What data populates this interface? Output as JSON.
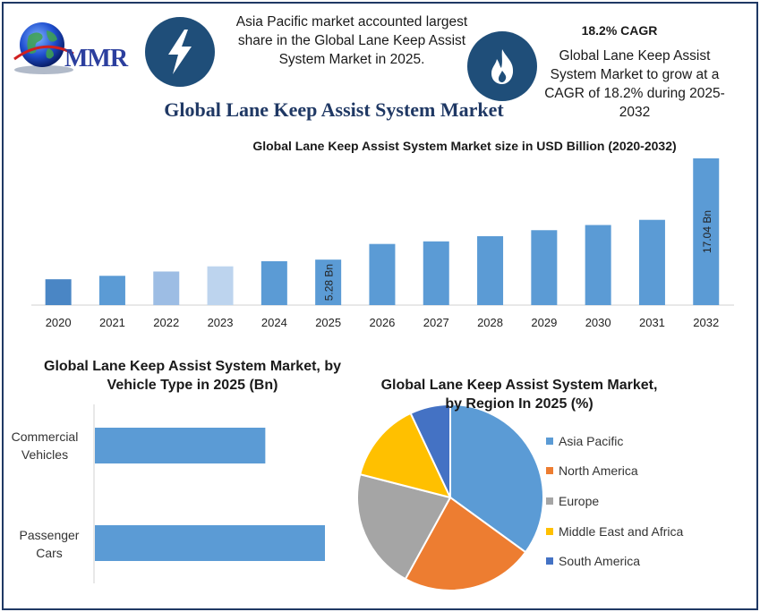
{
  "logo": {
    "text": "MMR"
  },
  "info_left": {
    "text": "Asia Pacific market accounted largest share in the Global Lane Keep Assist System Market in 2025."
  },
  "cagr": {
    "title": "18.2% CAGR",
    "text": "Global Lane Keep Assist System Market to grow at a CAGR of 18.2% during 2025-2032"
  },
  "main_title": "Global Lane Keep Assist System Market",
  "icons": {
    "left": "lightning-bolt-icon",
    "right": "flame-icon",
    "logo": "globe-icon"
  },
  "chart_data": [
    {
      "type": "bar",
      "title": "Global Lane Keep Assist System Market size in USD Billion (2020-2032)",
      "categories": [
        "2020",
        "2021",
        "2022",
        "2023",
        "2024",
        "2025",
        "2026",
        "2027",
        "2028",
        "2029",
        "2030",
        "2031",
        "2032"
      ],
      "values": [
        3.0,
        3.4,
        3.9,
        4.5,
        5.1,
        5.28,
        7.1,
        7.4,
        8.0,
        8.7,
        9.3,
        9.9,
        17.04
      ],
      "bar_colors": [
        "#4a86c5",
        "#5b9bd5",
        "#9dbde4",
        "#bdd4ee",
        "#5b9bd5",
        "#5b9bd5",
        "#5b9bd5",
        "#5b9bd5",
        "#5b9bd5",
        "#5b9bd5",
        "#5b9bd5",
        "#5b9bd5",
        "#5b9bd5"
      ],
      "data_labels": {
        "2025": "5.28 Bn",
        "2032": "17.04 Bn"
      },
      "xlabel": "",
      "ylabel": "",
      "grid": false
    },
    {
      "type": "bar",
      "orientation": "horizontal",
      "title": "Global Lane Keep Assist System Market,  by Vehicle Type in 2025 (Bn)",
      "categories": [
        "Commercial Vehicles",
        "Passenger Cars"
      ],
      "values": [
        2.0,
        2.7
      ],
      "color": "#5b9bd5",
      "grid": false
    },
    {
      "type": "pie",
      "title": "Global Lane Keep Assist System Market, by Region In 2025 (%)",
      "labels": [
        "Asia Pacific",
        "North America",
        "Europe",
        "Middle East and Africa",
        "South America"
      ],
      "values": [
        35,
        23,
        21,
        14,
        7
      ],
      "colors": [
        "#5b9bd5",
        "#ed7d31",
        "#a5a5a5",
        "#ffc000",
        "#4472c4"
      ],
      "legend": "right"
    }
  ]
}
